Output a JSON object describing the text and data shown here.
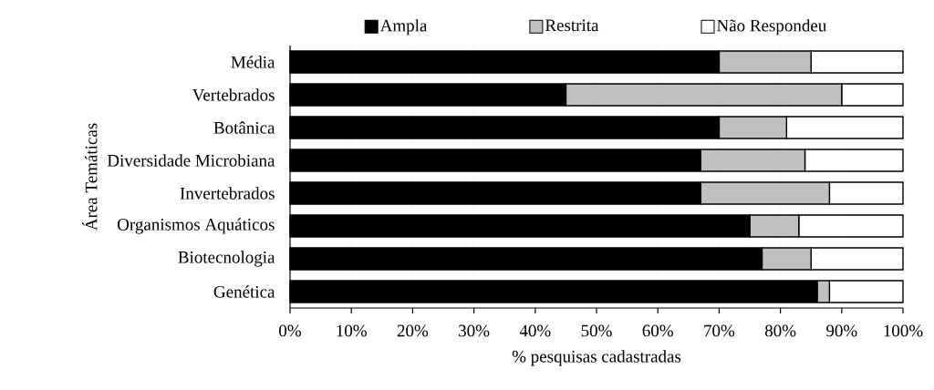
{
  "chart_data": {
    "type": "bar",
    "orientation": "horizontal",
    "stacked": true,
    "categories": [
      "Média",
      "Vertebrados",
      "Botânica",
      "Diversidade Microbiana",
      "Invertebrados",
      "Organismos Aquáticos",
      "Biotecnologia",
      "Genética"
    ],
    "series": [
      {
        "name": "Ampla",
        "color": "#000000",
        "values": [
          70,
          45,
          70,
          67,
          67,
          75,
          77,
          86
        ]
      },
      {
        "name": "Restrita",
        "color": "#c0c0c0",
        "values": [
          15,
          45,
          11,
          17,
          21,
          8,
          8,
          2
        ]
      },
      {
        "name": "Não Respondeu",
        "color": "#ffffff",
        "values": [
          15,
          10,
          19,
          16,
          12,
          17,
          15,
          12
        ]
      }
    ],
    "xlim": [
      0,
      100
    ],
    "xticks": [
      {
        "value": 0,
        "label": "0%"
      },
      {
        "value": 10,
        "label": "10%"
      },
      {
        "value": 20,
        "label": "20%"
      },
      {
        "value": 30,
        "label": "30%"
      },
      {
        "value": 40,
        "label": "40%"
      },
      {
        "value": 50,
        "label": "50%"
      },
      {
        "value": 60,
        "label": "60%"
      },
      {
        "value": 70,
        "label": "70%"
      },
      {
        "value": 80,
        "label": "80%"
      },
      {
        "value": 90,
        "label": "90%"
      },
      {
        "value": 100,
        "label": "100%"
      }
    ],
    "xlabel": "% pesquisas cadastradas",
    "ylabel": "Área Temáticas",
    "grid": "x",
    "legend": "top"
  }
}
